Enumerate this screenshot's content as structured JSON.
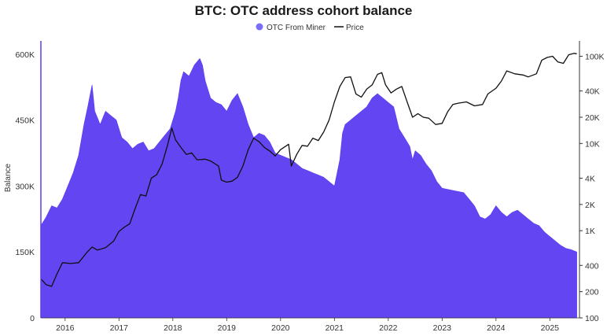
{
  "chart_data": {
    "type": "area",
    "title": "BTC: OTC address cohort balance",
    "ylabel": "Balance",
    "legend": {
      "placement": "top-center",
      "items": [
        {
          "name": "OTC From Miner",
          "kind": "area-dot"
        },
        {
          "name": "Price",
          "kind": "line"
        }
      ]
    },
    "x_ticks": [
      "2016",
      "2017",
      "2018",
      "2019",
      "2020",
      "2021",
      "2022",
      "2023",
      "2024",
      "2025"
    ],
    "x_range": [
      2015.55,
      2025.55
    ],
    "y_left": {
      "ylim": [
        0,
        630000
      ],
      "ticks": [
        0,
        150000,
        300000,
        450000,
        600000
      ],
      "tick_labels": [
        "0",
        "150K",
        "300K",
        "450K",
        "600K"
      ]
    },
    "y_right": {
      "scale": "log",
      "ylim": [
        100,
        150000
      ],
      "ticks": [
        100,
        200,
        400,
        1000,
        2000,
        4000,
        10000,
        20000,
        40000,
        100000
      ],
      "tick_labels": [
        "100",
        "200",
        "400",
        "1K",
        "2K",
        "4K",
        "10K",
        "20K",
        "40K",
        "100K"
      ]
    },
    "series": [
      {
        "name": "OTC From Miner",
        "axis": "left",
        "color": "#5b3bf0",
        "points": [
          [
            2015.55,
            210000
          ],
          [
            2015.65,
            230000
          ],
          [
            2015.75,
            255000
          ],
          [
            2015.85,
            250000
          ],
          [
            2015.95,
            270000
          ],
          [
            2016.05,
            300000
          ],
          [
            2016.15,
            330000
          ],
          [
            2016.25,
            370000
          ],
          [
            2016.35,
            440000
          ],
          [
            2016.42,
            480000
          ],
          [
            2016.5,
            530000
          ],
          [
            2016.55,
            470000
          ],
          [
            2016.65,
            440000
          ],
          [
            2016.75,
            470000
          ],
          [
            2016.85,
            460000
          ],
          [
            2016.95,
            450000
          ],
          [
            2017.05,
            410000
          ],
          [
            2017.15,
            400000
          ],
          [
            2017.25,
            385000
          ],
          [
            2017.35,
            395000
          ],
          [
            2017.45,
            400000
          ],
          [
            2017.55,
            380000
          ],
          [
            2017.65,
            385000
          ],
          [
            2017.75,
            400000
          ],
          [
            2017.85,
            415000
          ],
          [
            2017.95,
            430000
          ],
          [
            2018.05,
            470000
          ],
          [
            2018.1,
            500000
          ],
          [
            2018.15,
            540000
          ],
          [
            2018.2,
            560000
          ],
          [
            2018.3,
            550000
          ],
          [
            2018.4,
            575000
          ],
          [
            2018.5,
            590000
          ],
          [
            2018.55,
            575000
          ],
          [
            2018.6,
            540000
          ],
          [
            2018.7,
            500000
          ],
          [
            2018.8,
            490000
          ],
          [
            2018.9,
            485000
          ],
          [
            2019.0,
            470000
          ],
          [
            2019.1,
            495000
          ],
          [
            2019.2,
            510000
          ],
          [
            2019.3,
            480000
          ],
          [
            2019.4,
            440000
          ],
          [
            2019.5,
            410000
          ],
          [
            2019.6,
            420000
          ],
          [
            2019.7,
            415000
          ],
          [
            2019.8,
            400000
          ],
          [
            2019.9,
            375000
          ],
          [
            2020.0,
            370000
          ],
          [
            2020.1,
            365000
          ],
          [
            2020.2,
            360000
          ],
          [
            2020.3,
            350000
          ],
          [
            2020.4,
            340000
          ],
          [
            2020.5,
            335000
          ],
          [
            2020.6,
            330000
          ],
          [
            2020.7,
            325000
          ],
          [
            2020.8,
            320000
          ],
          [
            2020.9,
            310000
          ],
          [
            2021.0,
            300000
          ],
          [
            2021.05,
            330000
          ],
          [
            2021.1,
            360000
          ],
          [
            2021.15,
            420000
          ],
          [
            2021.2,
            440000
          ],
          [
            2021.3,
            450000
          ],
          [
            2021.4,
            460000
          ],
          [
            2021.5,
            470000
          ],
          [
            2021.6,
            480000
          ],
          [
            2021.7,
            500000
          ],
          [
            2021.8,
            510000
          ],
          [
            2021.9,
            500000
          ],
          [
            2022.0,
            490000
          ],
          [
            2022.1,
            480000
          ],
          [
            2022.2,
            430000
          ],
          [
            2022.3,
            410000
          ],
          [
            2022.4,
            390000
          ],
          [
            2022.45,
            360000
          ],
          [
            2022.5,
            380000
          ],
          [
            2022.6,
            370000
          ],
          [
            2022.7,
            350000
          ],
          [
            2022.8,
            335000
          ],
          [
            2022.9,
            310000
          ],
          [
            2023.0,
            295000
          ],
          [
            2023.2,
            290000
          ],
          [
            2023.4,
            285000
          ],
          [
            2023.5,
            270000
          ],
          [
            2023.6,
            255000
          ],
          [
            2023.7,
            230000
          ],
          [
            2023.8,
            225000
          ],
          [
            2023.9,
            235000
          ],
          [
            2024.0,
            255000
          ],
          [
            2024.1,
            240000
          ],
          [
            2024.2,
            230000
          ],
          [
            2024.3,
            240000
          ],
          [
            2024.4,
            245000
          ],
          [
            2024.5,
            235000
          ],
          [
            2024.6,
            225000
          ],
          [
            2024.7,
            215000
          ],
          [
            2024.8,
            210000
          ],
          [
            2024.9,
            195000
          ],
          [
            2025.0,
            185000
          ],
          [
            2025.1,
            175000
          ],
          [
            2025.2,
            165000
          ],
          [
            2025.3,
            158000
          ],
          [
            2025.4,
            155000
          ],
          [
            2025.5,
            150000
          ]
        ]
      },
      {
        "name": "Price",
        "axis": "right",
        "color": "#111111",
        "points": [
          [
            2015.55,
            280
          ],
          [
            2015.65,
            240
          ],
          [
            2015.75,
            230
          ],
          [
            2015.85,
            320
          ],
          [
            2015.95,
            430
          ],
          [
            2016.1,
            420
          ],
          [
            2016.25,
            430
          ],
          [
            2016.4,
            560
          ],
          [
            2016.5,
            650
          ],
          [
            2016.6,
            600
          ],
          [
            2016.75,
            640
          ],
          [
            2016.9,
            760
          ],
          [
            2017.0,
            980
          ],
          [
            2017.1,
            1100
          ],
          [
            2017.2,
            1200
          ],
          [
            2017.3,
            1800
          ],
          [
            2017.4,
            2600
          ],
          [
            2017.5,
            2500
          ],
          [
            2017.6,
            4000
          ],
          [
            2017.7,
            4400
          ],
          [
            2017.8,
            5800
          ],
          [
            2017.9,
            9500
          ],
          [
            2017.98,
            15000
          ],
          [
            2018.05,
            11000
          ],
          [
            2018.15,
            9000
          ],
          [
            2018.25,
            7500
          ],
          [
            2018.35,
            7800
          ],
          [
            2018.45,
            6500
          ],
          [
            2018.6,
            6600
          ],
          [
            2018.7,
            6300
          ],
          [
            2018.85,
            5500
          ],
          [
            2018.9,
            3800
          ],
          [
            2019.0,
            3600
          ],
          [
            2019.1,
            3700
          ],
          [
            2019.2,
            4100
          ],
          [
            2019.3,
            5500
          ],
          [
            2019.4,
            8500
          ],
          [
            2019.5,
            11500
          ],
          [
            2019.6,
            10500
          ],
          [
            2019.7,
            9000
          ],
          [
            2019.8,
            8200
          ],
          [
            2019.9,
            7200
          ],
          [
            2020.0,
            8500
          ],
          [
            2020.15,
            9800
          ],
          [
            2020.2,
            5500
          ],
          [
            2020.3,
            7500
          ],
          [
            2020.4,
            9500
          ],
          [
            2020.5,
            9300
          ],
          [
            2020.6,
            11500
          ],
          [
            2020.7,
            10800
          ],
          [
            2020.8,
            13500
          ],
          [
            2020.9,
            18500
          ],
          [
            2021.0,
            30000
          ],
          [
            2021.1,
            45000
          ],
          [
            2021.2,
            57000
          ],
          [
            2021.3,
            58000
          ],
          [
            2021.4,
            37000
          ],
          [
            2021.5,
            34000
          ],
          [
            2021.6,
            42000
          ],
          [
            2021.7,
            47000
          ],
          [
            2021.8,
            62000
          ],
          [
            2021.88,
            65000
          ],
          [
            2021.95,
            47000
          ],
          [
            2022.05,
            38000
          ],
          [
            2022.15,
            42000
          ],
          [
            2022.25,
            45000
          ],
          [
            2022.35,
            30000
          ],
          [
            2022.45,
            20000
          ],
          [
            2022.55,
            22000
          ],
          [
            2022.65,
            20000
          ],
          [
            2022.75,
            19500
          ],
          [
            2022.88,
            16500
          ],
          [
            2023.0,
            17000
          ],
          [
            2023.1,
            23000
          ],
          [
            2023.2,
            28000
          ],
          [
            2023.3,
            29000
          ],
          [
            2023.45,
            30000
          ],
          [
            2023.6,
            27000
          ],
          [
            2023.75,
            28000
          ],
          [
            2023.85,
            37000
          ],
          [
            2024.0,
            43000
          ],
          [
            2024.1,
            52000
          ],
          [
            2024.2,
            68000
          ],
          [
            2024.35,
            63000
          ],
          [
            2024.5,
            61000
          ],
          [
            2024.6,
            58000
          ],
          [
            2024.75,
            63000
          ],
          [
            2024.85,
            90000
          ],
          [
            2024.95,
            97000
          ],
          [
            2025.05,
            100000
          ],
          [
            2025.15,
            86000
          ],
          [
            2025.25,
            83000
          ],
          [
            2025.35,
            104000
          ],
          [
            2025.45,
            108000
          ],
          [
            2025.5,
            107000
          ]
        ]
      }
    ],
    "grid": false
  }
}
